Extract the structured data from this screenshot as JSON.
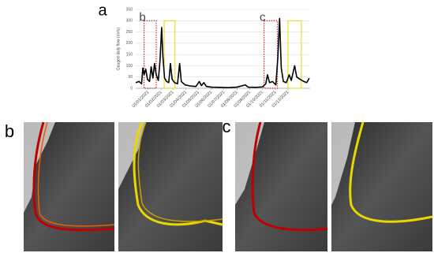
{
  "chart_data": {
    "type": "line",
    "panel_label": "a",
    "y_label": "Gauged daily flow (m³/s)",
    "series": [
      {
        "color": "#000000",
        "x": [
          "2020-12-02",
          "2020-12-10",
          "2020-12-16",
          "2020-12-19",
          "2020-12-22",
          "2020-12-26",
          "2020-12-30",
          "2021-01-04",
          "2021-01-08",
          "2021-01-12",
          "2021-01-16",
          "2021-01-20",
          "2021-01-25",
          "2021-01-29",
          "2021-02-02",
          "2021-02-05",
          "2021-02-09",
          "2021-02-14",
          "2021-02-19",
          "2021-02-23",
          "2021-02-27",
          "2021-03-05",
          "2021-03-12",
          "2021-03-17",
          "2021-03-21",
          "2021-03-30",
          "2021-04-12",
          "2021-04-25",
          "2021-05-03",
          "2021-05-08",
          "2021-05-14",
          "2021-05-20",
          "2021-06-01",
          "2021-06-20",
          "2021-07-10",
          "2021-08-01",
          "2021-08-21",
          "2021-08-28",
          "2021-09-15",
          "2021-10-01",
          "2021-10-09",
          "2021-10-13",
          "2021-10-18",
          "2021-10-25",
          "2021-11-02",
          "2021-11-07",
          "2021-11-11",
          "2021-11-15",
          "2021-11-20",
          "2021-11-27",
          "2021-12-04",
          "2021-12-09",
          "2021-12-17",
          "2021-12-22",
          "2021-12-30",
          "2022-01-08",
          "2022-01-15",
          "2022-01-21"
        ],
        "values": [
          25,
          30,
          20,
          90,
          60,
          85,
          40,
          30,
          95,
          45,
          110,
          60,
          35,
          120,
          270,
          140,
          45,
          30,
          25,
          110,
          40,
          25,
          20,
          110,
          30,
          15,
          10,
          8,
          30,
          12,
          25,
          8,
          5,
          4,
          3,
          5,
          15,
          5,
          4,
          6,
          20,
          60,
          25,
          30,
          15,
          140,
          310,
          90,
          30,
          25,
          60,
          35,
          100,
          50,
          40,
          30,
          25,
          45
        ]
      }
    ],
    "xlim": [
      "2020-12-02",
      "2022-01-23"
    ],
    "xticks": [
      {
        "value": "2021-01-01",
        "label": "01/01/2021"
      },
      {
        "value": "2021-02-01",
        "label": "01/02/2021"
      },
      {
        "value": "2021-03-01",
        "label": "01/03/2021"
      },
      {
        "value": "2021-04-01",
        "label": "01/04/2021"
      },
      {
        "value": "2021-05-01",
        "label": "01/05/2021"
      },
      {
        "value": "2021-06-01",
        "label": "01/06/2021"
      },
      {
        "value": "2021-07-01",
        "label": "01/07/2021"
      },
      {
        "value": "2021-08-01",
        "label": "01/08/2021"
      },
      {
        "value": "2021-09-01",
        "label": "01/09/2021"
      },
      {
        "value": "2021-10-01",
        "label": "01/10/2021"
      },
      {
        "value": "2021-11-01",
        "label": "01/11/2021"
      },
      {
        "value": "2021-12-01",
        "label": "01/12/2021"
      }
    ],
    "ylim": [
      0,
      350
    ],
    "yticks": [
      0,
      50,
      100,
      150,
      200,
      250,
      300,
      350
    ],
    "grid": true,
    "highlights": [
      {
        "label": "b",
        "start": "2020-12-22",
        "end": "2021-01-20",
        "color": "#c00000",
        "end_color": "#e8d800",
        "end_start": "2021-02-08",
        "end_end": "2021-03-06"
      },
      {
        "label": "c",
        "start": "2021-10-05",
        "end": "2021-11-06",
        "color": "#c00000",
        "end_color": "#e8d800",
        "end_start": "2021-12-01",
        "end_end": "2022-01-02"
      }
    ]
  },
  "images": {
    "b_label": "b",
    "c_label": "c"
  }
}
